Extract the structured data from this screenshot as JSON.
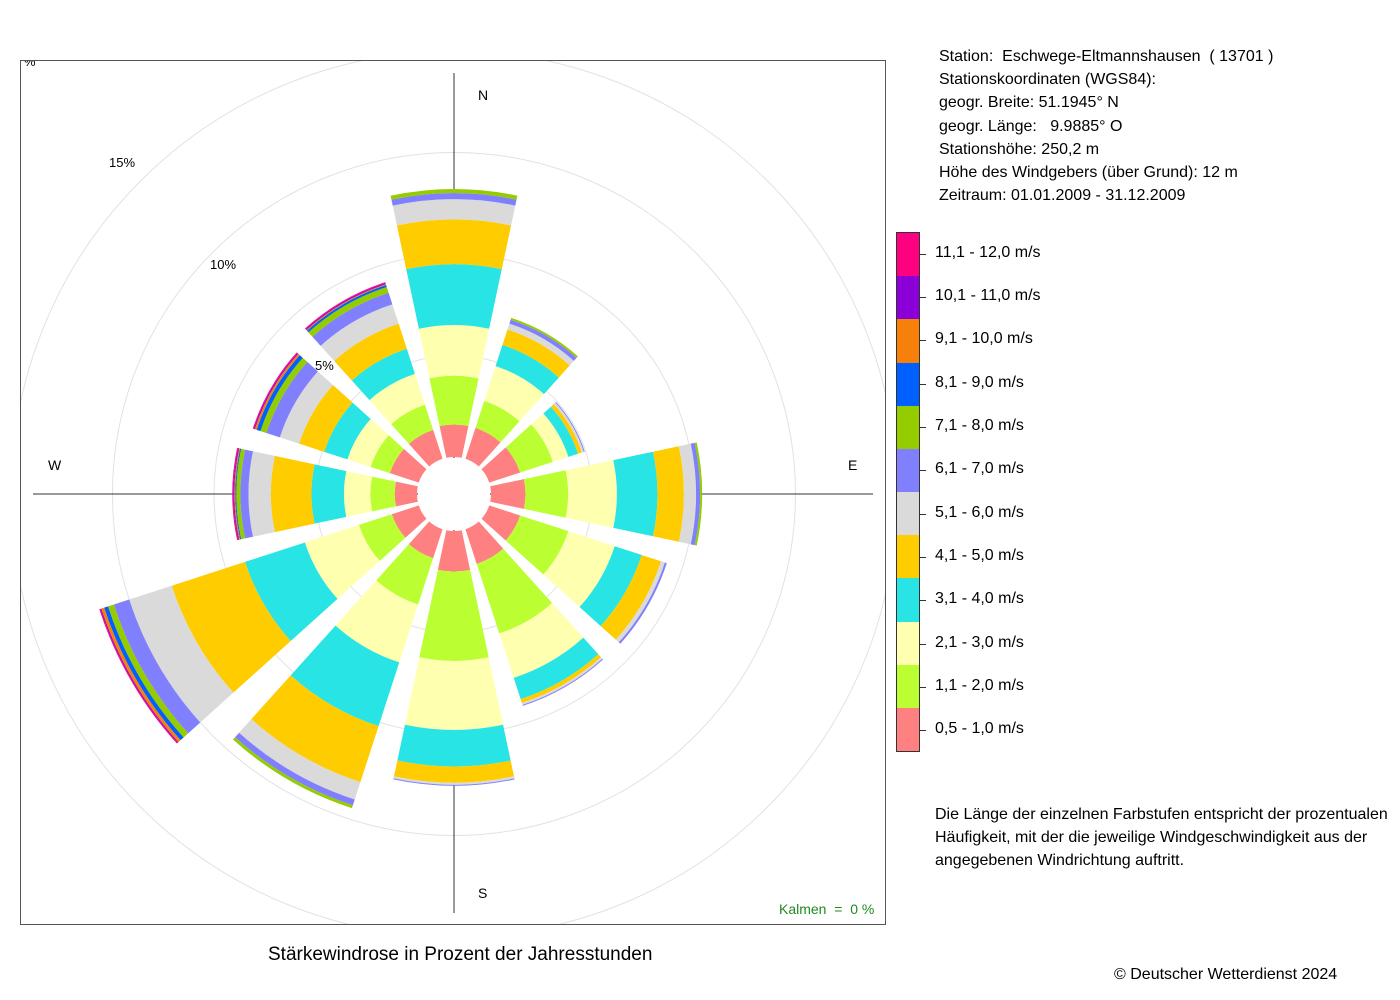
{
  "station": {
    "lines": [
      "Station:  Eschwege-Eltmannshausen  ( 13701 )",
      "Stationskoordinaten (WGS84):",
      "geogr. Breite: 51.1945° N",
      "geogr. Länge:   9.9885° O",
      "Stationshöhe: 250,2 m",
      "Höhe des Windgebers (über Grund): 12 m",
      "Zeitraum: 01.01.2009 - 31.12.2009"
    ]
  },
  "legend": {
    "classes": [
      {
        "label": "11,1 - 12,0 m/s",
        "color": "#ff0080"
      },
      {
        "label": "10,1 - 11,0 m/s",
        "color": "#8c00d8"
      },
      {
        "label": "9,1 - 10,0 m/s",
        "color": "#f7800a"
      },
      {
        "label": "8,1 - 9,0 m/s",
        "color": "#0060ff"
      },
      {
        "label": "7,1 - 8,0 m/s",
        "color": "#94cc00"
      },
      {
        "label": "6,1 - 7,0 m/s",
        "color": "#8080ff"
      },
      {
        "label": "5,1 - 6,0 m/s",
        "color": "#dadada"
      },
      {
        "label": "4,1 - 5,0 m/s",
        "color": "#ffcc00"
      },
      {
        "label": "3,1 - 4,0 m/s",
        "color": "#28e4e4"
      },
      {
        "label": "2,1 - 3,0 m/s",
        "color": "#ffffb0"
      },
      {
        "label": "1,1 - 2,0 m/s",
        "color": "#bbff33"
      },
      {
        "label": "0,5 - 1,0 m/s",
        "color": "#ff8080"
      }
    ]
  },
  "compass": {
    "north": "N",
    "east": "E",
    "south": "S",
    "west": "W"
  },
  "calms": "Kalmen  =  0 %",
  "caption": "Stärkewindrose in Prozent der Jahresstunden",
  "note": "Die Länge der einzelnen Farbstufen entspricht der prozentualen Häufigkeit, mit der die jeweilige Windgeschwindigkeit aus der angegebenen Windrichtung auftritt.",
  "copyright": "© Deutscher Wetterdienst  2024",
  "chart_data": {
    "type": "windrose",
    "unit": "%",
    "ring_labels": [
      "5%",
      "10%",
      "15%",
      "%"
    ],
    "rings": [
      5,
      10,
      15,
      20
    ],
    "directions": [
      "N",
      "30°",
      "60°",
      "E",
      "120°",
      "150°",
      "S",
      "210°",
      "240°",
      "W",
      "300°",
      "330°"
    ],
    "angles": [
      0,
      30,
      60,
      90,
      120,
      150,
      180,
      210,
      240,
      270,
      300,
      330
    ],
    "speed_classes": [
      "0,5 - 1,0 m/s",
      "1,1 - 2,0 m/s",
      "2,1 - 3,0 m/s",
      "3,1 - 4,0 m/s",
      "4,1 - 5,0 m/s",
      "5,1 - 6,0 m/s",
      "6,1 - 7,0 m/s",
      "7,1 - 8,0 m/s",
      "8,1 - 9,0 m/s",
      "9,1 - 10,0 m/s",
      "10,1 - 11,0 m/s",
      "11,1 - 12,0 m/s"
    ],
    "colors": [
      "#ff8080",
      "#bbff33",
      "#ffffb0",
      "#28e4e4",
      "#ffcc00",
      "#dadada",
      "#8080ff",
      "#94cc00",
      "#0060ff",
      "#f7800a",
      "#8c00d8",
      "#ff0080"
    ],
    "values": [
      [
        1.6,
        2.4,
        2.5,
        3.0,
        2.2,
        1.0,
        0.3,
        0.2,
        0,
        0,
        0,
        0
      ],
      [
        1.6,
        1.4,
        1.8,
        1.1,
        0.8,
        0.3,
        0.2,
        0.1,
        0,
        0,
        0,
        0
      ],
      [
        1.6,
        1.7,
        0.8,
        0.5,
        0.2,
        0.1,
        0.05,
        0,
        0,
        0,
        0,
        0
      ],
      [
        1.7,
        2.1,
        2.4,
        2.0,
        1.3,
        0.6,
        0.2,
        0.1,
        0,
        0,
        0,
        0
      ],
      [
        1.6,
        2.5,
        2.4,
        1.4,
        1.0,
        0.2,
        0.1,
        0,
        0,
        0,
        0,
        0
      ],
      [
        1.8,
        3.6,
        2.3,
        1.1,
        0.2,
        0.1,
        0.05,
        0,
        0,
        0,
        0,
        0
      ],
      [
        2.0,
        4.4,
        3.4,
        1.8,
        0.8,
        0.1,
        0.05,
        0,
        0,
        0,
        0,
        0
      ],
      [
        1.5,
        2.4,
        3.0,
        3.3,
        2.9,
        0.9,
        0.3,
        0.15,
        0,
        0,
        0,
        0
      ],
      [
        1.4,
        1.7,
        2.8,
        3.1,
        3.8,
        2.2,
        0.8,
        0.3,
        0.2,
        0.15,
        0.05,
        0.05
      ],
      [
        1.1,
        1.2,
        1.3,
        1.6,
        2.0,
        1.1,
        0.4,
        0.2,
        0.05,
        0.05,
        0.05,
        0.05
      ],
      [
        1.5,
        1.0,
        1.2,
        1.2,
        1.3,
        1.0,
        0.7,
        0.3,
        0.2,
        0.1,
        0.05,
        0.05
      ],
      [
        1.5,
        1.3,
        1.6,
        1.3,
        1.3,
        1.0,
        0.6,
        0.3,
        0.1,
        0.05,
        0.05,
        0.05
      ]
    ],
    "sector_width_deg": 24,
    "calms_percent": 0
  }
}
